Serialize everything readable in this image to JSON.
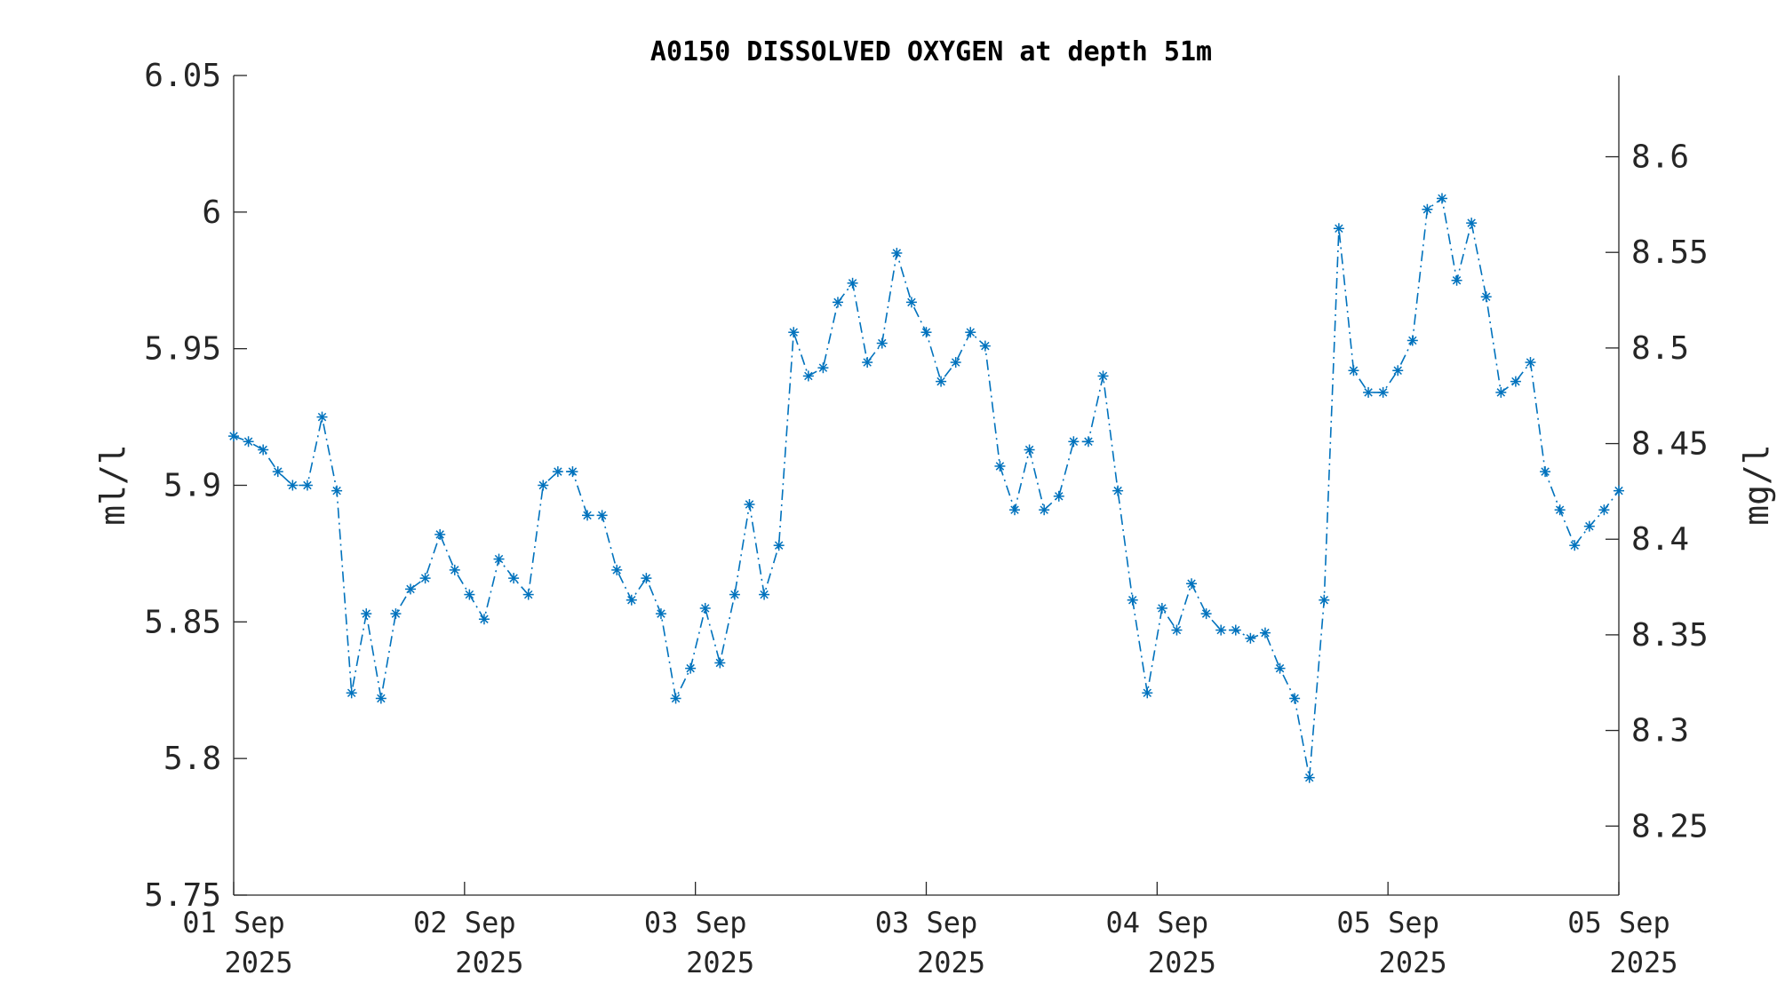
{
  "chart_data": {
    "type": "line",
    "title": "A0150 DISSOLVED OXYGEN at depth 51m",
    "ylabel": "ml/l",
    "ylabel_right": "mg/l",
    "ylim": [
      5.75,
      6.05
    ],
    "ylim_right": [
      8.2139,
      8.6425
    ],
    "yticks": [
      "5.75",
      "5.8",
      "5.85",
      "5.9",
      "5.95",
      "6",
      "6.05"
    ],
    "yticks_right": [
      "8.25",
      "8.3",
      "8.35",
      "8.4",
      "8.45",
      "8.5",
      "8.55",
      "8.6"
    ],
    "xticks": [
      {
        "line1": "01 Sep",
        "line2": "2025"
      },
      {
        "line1": "02 Sep",
        "line2": "2025"
      },
      {
        "line1": "03 Sep",
        "line2": "2025"
      },
      {
        "line1": "03 Sep",
        "line2": "2025"
      },
      {
        "line1": "04 Sep",
        "line2": "2025"
      },
      {
        "line1": "05 Sep",
        "line2": "2025"
      },
      {
        "line1": "05 Sep",
        "line2": "2025"
      }
    ],
    "marker": "asterisk",
    "line_style": "dash-dot",
    "color": "#0072BD",
    "grid": false,
    "legend": "none",
    "series": [
      {
        "values": [
          5.918,
          5.916,
          5.913,
          5.905,
          5.9,
          5.9,
          5.925,
          5.898,
          5.824,
          5.853,
          5.822,
          5.853,
          5.862,
          5.866,
          5.882,
          5.869,
          5.86,
          5.851,
          5.873,
          5.866,
          5.86,
          5.9,
          5.905,
          5.905,
          5.889,
          5.889,
          5.869,
          5.858,
          5.866,
          5.853,
          5.822,
          5.833,
          5.855,
          5.835,
          5.86,
          5.893,
          5.86,
          5.878,
          5.956,
          5.94,
          5.943,
          5.967,
          5.974,
          5.945,
          5.952,
          5.985,
          5.967,
          5.956,
          5.938,
          5.945,
          5.956,
          5.951,
          5.907,
          5.891,
          5.913,
          5.891,
          5.896,
          5.916,
          5.916,
          5.94,
          5.898,
          5.858,
          5.824,
          5.855,
          5.847,
          5.864,
          5.853,
          5.847,
          5.847,
          5.844,
          5.846,
          5.833,
          5.822,
          5.793,
          5.858,
          5.994,
          5.942,
          5.934,
          5.934,
          5.942,
          5.953,
          6.001,
          6.005,
          5.975,
          5.996,
          5.969,
          5.934,
          5.938,
          5.945,
          5.905,
          5.891,
          5.878,
          5.885,
          5.891,
          5.898
        ]
      }
    ]
  }
}
